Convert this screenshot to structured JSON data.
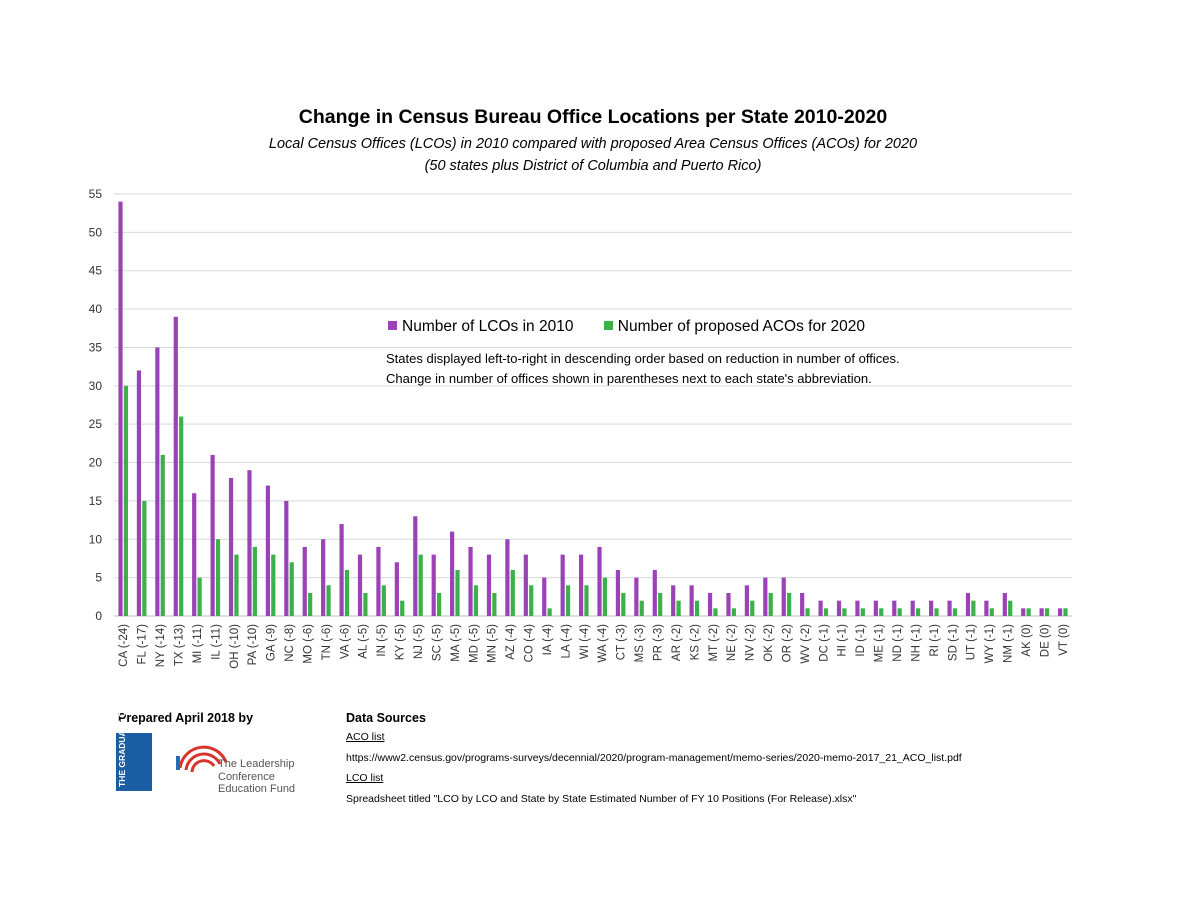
{
  "chart_data": {
    "type": "bar",
    "title": "Change in Census Bureau Office Locations per State 2010-2020",
    "subtitle_line1": "Local Census Offices (LCOs) in 2010 compared with proposed Area Census Offices (ACOs) for 2020",
    "subtitle_line2": "(50 states plus District of Columbia and Puerto Rico)",
    "xlabel": "",
    "ylabel": "",
    "ylim": [
      0,
      55
    ],
    "yticks": [
      0,
      5,
      10,
      15,
      20,
      25,
      30,
      35,
      40,
      45,
      50,
      55
    ],
    "grid": true,
    "categories": [
      "CA (-24)",
      "FL (-17)",
      "NY (-14)",
      "TX (-13)",
      "MI (-11)",
      "IL (-11)",
      "OH (-10)",
      "PA (-10)",
      "GA (-9)",
      "NC (-8)",
      "MO (-6)",
      "TN (-6)",
      "VA (-6)",
      "AL (-5)",
      "IN (-5)",
      "KY (-5)",
      "NJ (-5)",
      "SC (-5)",
      "MA (-5)",
      "MD (-5)",
      "MN (-5)",
      "AZ (-4)",
      "CO (-4)",
      "IA (-4)",
      "LA (-4)",
      "WI (-4)",
      "WA (-4)",
      "CT (-3)",
      "MS (-3)",
      "PR (-3)",
      "AR (-2)",
      "KS (-2)",
      "MT (-2)",
      "NE (-2)",
      "NV (-2)",
      "OK (-2)",
      "OR (-2)",
      "WV (-2)",
      "DC (-1)",
      "HI (-1)",
      "ID (-1)",
      "ME (-1)",
      "ND (-1)",
      "NH (-1)",
      "RI (-1)",
      "SD (-1)",
      "UT (-1)",
      "WY (-1)",
      "NM (-1)",
      "AK (0)",
      "DE (0)",
      "VT (0)"
    ],
    "series": [
      {
        "name": "Number of LCOs in 2010",
        "color": "#9b42b7",
        "values": [
          54,
          32,
          35,
          39,
          16,
          21,
          18,
          19,
          17,
          15,
          9,
          10,
          12,
          8,
          9,
          7,
          13,
          8,
          11,
          9,
          8,
          10,
          8,
          5,
          8,
          8,
          9,
          6,
          5,
          6,
          4,
          4,
          3,
          3,
          4,
          5,
          5,
          3,
          2,
          2,
          2,
          2,
          2,
          2,
          2,
          2,
          3,
          2,
          3,
          1,
          1,
          1
        ]
      },
      {
        "name": "Number of proposed ACOs for 2020",
        "color": "#3cb14a",
        "values": [
          30,
          15,
          21,
          26,
          5,
          10,
          8,
          9,
          8,
          7,
          3,
          4,
          6,
          3,
          4,
          2,
          8,
          3,
          6,
          4,
          3,
          6,
          4,
          1,
          4,
          4,
          5,
          3,
          2,
          3,
          2,
          2,
          1,
          1,
          2,
          3,
          3,
          1,
          1,
          1,
          1,
          1,
          1,
          1,
          1,
          1,
          2,
          1,
          2,
          1,
          1,
          1
        ]
      }
    ],
    "legend_position": "top-center",
    "annotation_line1": "States displayed left-to-right in descending order based on reduction in number of offices.",
    "annotation_line2": "Change in number of offices shown in parentheses next to each state's abbreviation."
  },
  "footer": {
    "prepared_label": "Prepared April 2018 by",
    "gc_logo_text": "THE GRADUATE CENTER",
    "lc_logo_line1": "The Leadership",
    "lc_logo_line2": "Conference",
    "lc_logo_line3": "Education Fund",
    "data_sources_label": "Data Sources",
    "aco_label": "ACO list",
    "aco_url": "https://www2.census.gov/programs-surveys/decennial/2020/program-management/memo-series/2020-memo-2017_21_ACO_list.pdf",
    "lco_label": "LCO list",
    "lco_text": "Spreadsheet titled \"LCO by LCO and State by State Estimated Number of FY 10 Positions (For Release).xlsx\""
  },
  "colors": {
    "lco": "#9b42b7",
    "aco": "#3cb14a",
    "grid": "#d9d9d9",
    "gc_blue": "#1b5ea3"
  }
}
